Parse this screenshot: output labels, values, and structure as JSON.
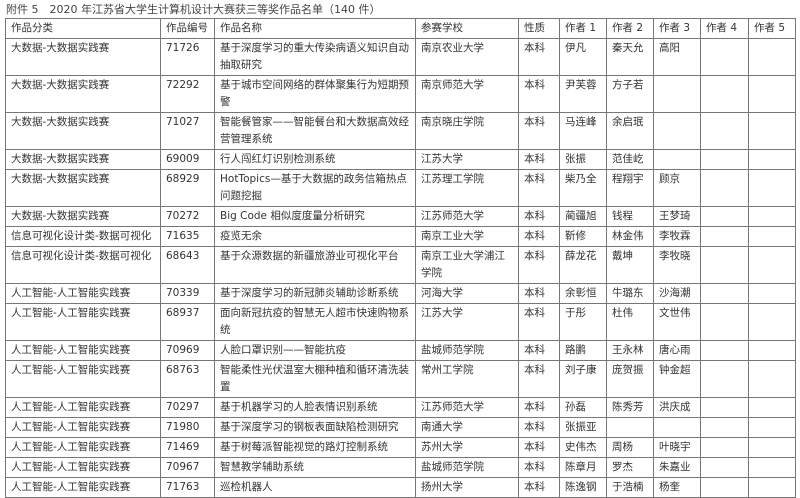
{
  "title": "附件 5　2020 年江苏省大学生计算机设计大赛获三等奖作品名单（140 件）",
  "columns": [
    "作品分类",
    "作品编号",
    "作品名称",
    "参赛学校",
    "性质",
    "作者 1",
    "作者 2",
    "作者 3",
    "作者 4",
    "作者 5"
  ],
  "rows": [
    [
      "大数据-大数据实践赛",
      "71726",
      "基于深度学习的重大传染病语义知识自动抽取研究",
      "南京农业大学",
      "本科",
      "伊凡",
      "秦天允",
      "高阳",
      "",
      ""
    ],
    [
      "大数据-大数据实践赛",
      "72292",
      "基于城市空间网络的群体聚集行为短期预警",
      "南京师范大学",
      "本科",
      "尹芙蓉",
      "方子若",
      "",
      "",
      ""
    ],
    [
      "大数据-大数据实践赛",
      "71027",
      "智能餐管家——智能餐台和大数据高效经营管理系统",
      "南京晓庄学院",
      "本科",
      "马连峰",
      "余启珉",
      "",
      "",
      ""
    ],
    [
      "大数据-大数据实践赛",
      "69009",
      "行人闯红灯识别检测系统",
      "江苏大学",
      "本科",
      "张振",
      "范佳屹",
      "",
      "",
      ""
    ],
    [
      "大数据-大数据实践赛",
      "68929",
      "HotTopics—基于大数据的政务信箱热点问题挖掘",
      "江苏理工学院",
      "本科",
      "柴乃全",
      "程翔宇",
      "顾京",
      "",
      ""
    ],
    [
      "大数据-大数据实践赛",
      "70272",
      "Big Code 相似度度量分析研究",
      "江苏师范大学",
      "本科",
      "蔺疆旭",
      "钱程",
      "王梦琦",
      "",
      ""
    ],
    [
      "信息可视化设计类-数据可视化",
      "71635",
      "疫览无余",
      "南京工业大学",
      "本科",
      "靳修",
      "林金伟",
      "李牧霖",
      "",
      ""
    ],
    [
      "信息可视化设计类-数据可视化",
      "68643",
      "基于众源数据的新疆旅游业可视化平台",
      "南京工业大学浦江学院",
      "本科",
      "薛龙花",
      "戴坤",
      "李牧晓",
      "",
      ""
    ],
    [
      "人工智能-人工智能实践赛",
      "70339",
      "基于深度学习的新冠肺炎辅助诊断系统",
      "河海大学",
      "本科",
      "余彰恒",
      "牛璐东",
      "沙海潮",
      "",
      ""
    ],
    [
      "人工智能-人工智能实践赛",
      "68937",
      "面向新冠抗疫的智慧无人超市快速购物系统",
      "江苏大学",
      "本科",
      "于彤",
      "杜伟",
      "文世伟",
      "",
      ""
    ],
    [
      "人工智能-人工智能实践赛",
      "70969",
      "人脸口罩识别——智能抗疫",
      "盐城师范学院",
      "本科",
      "路鹏",
      "王永林",
      "唐心雨",
      "",
      ""
    ],
    [
      "人工智能-人工智能实践赛",
      "68763",
      "智能柔性光伏温室大棚种植和循环清洗装置",
      "常州工学院",
      "本科",
      "刘子康",
      "庞贺振",
      "钟金超",
      "",
      ""
    ],
    [
      "人工智能-人工智能实践赛",
      "70297",
      "基于机器学习的人脸表情识别系统",
      "江苏师范大学",
      "本科",
      "孙磊",
      "陈秀芳",
      "洪庆成",
      "",
      ""
    ],
    [
      "人工智能-人工智能实践赛",
      "71980",
      "基于深度学习的钢板表面缺陷检测研究",
      "南通大学",
      "本科",
      "张振亚",
      "",
      "",
      "",
      ""
    ],
    [
      "人工智能-人工智能实践赛",
      "71469",
      "基于树莓派智能视觉的路灯控制系统",
      "苏州大学",
      "本科",
      "史伟杰",
      "周杨",
      "叶晓宇",
      "",
      ""
    ],
    [
      "人工智能-人工智能实践赛",
      "70967",
      "智慧教学辅助系统",
      "盐城师范学院",
      "本科",
      "陈章月",
      "罗杰",
      "朱嘉业",
      "",
      ""
    ],
    [
      "人工智能-人工智能实践赛",
      "71763",
      "巡检机器人",
      "扬州大学",
      "本科",
      "陈逸钢",
      "于浩楠",
      "杨奎",
      "",
      ""
    ]
  ]
}
